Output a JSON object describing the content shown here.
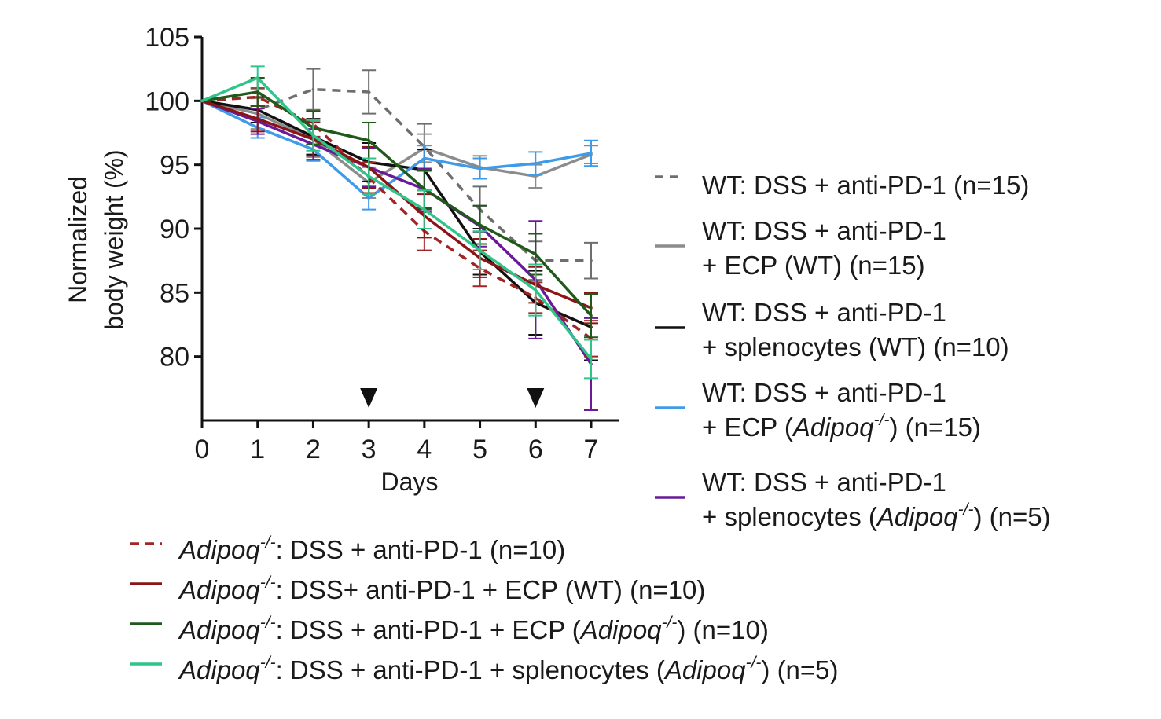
{
  "chart_data": {
    "type": "line",
    "xlabel": "Days",
    "ylabel": [
      "Normalized",
      "body weight (%)"
    ],
    "x": [
      0,
      1,
      2,
      3,
      4,
      5,
      6,
      7
    ],
    "xlim": [
      0,
      7
    ],
    "ylim": [
      75,
      105
    ],
    "yticks": [
      80,
      85,
      90,
      95,
      100,
      105
    ],
    "xticks": [
      0,
      1,
      2,
      3,
      4,
      5,
      6,
      7
    ],
    "grid": false,
    "markers": [
      {
        "x": 3,
        "shape": "triangle-down",
        "meaning": "treatment day"
      },
      {
        "x": 6,
        "shape": "triangle-down",
        "meaning": "treatment day"
      }
    ],
    "series": [
      {
        "name": "WT: DSS + anti-PD-1 (n=15)",
        "color": "#6e6e6e",
        "dash": true,
        "values": [
          100,
          99.3,
          100.9,
          100.7,
          96.4,
          91.5,
          87.5,
          87.5
        ],
        "errors": [
          0,
          1.0,
          1.6,
          1.7,
          1.8,
          1.8,
          1.5,
          1.4
        ]
      },
      {
        "name": "WT: DSS + anti-PD-1 + ECP (WT) (n=15)",
        "color": "#8c8c8c",
        "dash": false,
        "values": [
          100,
          99.0,
          97.0,
          93.6,
          96.3,
          94.8,
          94.1,
          95.8
        ],
        "errors": [
          0,
          1.2,
          1.4,
          1.2,
          1.1,
          0.9,
          0.9,
          0.7
        ]
      },
      {
        "name": "WT: DSS + anti-PD-1 + splenocytes (WT) (n=10)",
        "color": "#111111",
        "dash": false,
        "values": [
          100,
          99.3,
          97.2,
          95.2,
          94.6,
          88.2,
          84.2,
          82.3
        ],
        "errors": [
          0,
          1.0,
          1.4,
          1.5,
          1.6,
          1.8,
          2.5,
          2.6
        ]
      },
      {
        "name": "WT: DSS + anti-PD-1 + ECP (Adipoq-/-) (n=15)",
        "color": "#3f9ae8",
        "dash": false,
        "values": [
          100,
          97.9,
          96.2,
          92.4,
          95.5,
          94.7,
          95.1,
          95.9
        ],
        "errors": [
          0,
          0.8,
          0.9,
          0.9,
          1.0,
          0.8,
          0.9,
          1.0
        ]
      },
      {
        "name": "WT: DSS + anti-PD-1 + splenocytes (Adipoq-/-) (n=5)",
        "color": "#6a1a98",
        "dash": false,
        "values": [
          100,
          98.4,
          96.6,
          94.8,
          93.1,
          90.2,
          86.0,
          79.4
        ],
        "errors": [
          0,
          1.0,
          1.2,
          1.5,
          1.6,
          1.6,
          4.6,
          3.6
        ]
      },
      {
        "name": "Adipoq-/-: DSS + anti-PD-1 (n=10)",
        "color": "#a12525",
        "dash": true,
        "values": [
          100,
          100.3,
          98.2,
          94.0,
          89.8,
          86.9,
          84.6,
          81.4
        ],
        "errors": [
          0,
          0.7,
          1.0,
          1.2,
          1.5,
          1.4,
          1.2,
          1.4
        ]
      },
      {
        "name": "Adipoq-/-: DSS+ anti-PD-1 + ECP (WT) (n=10)",
        "color": "#8b1515",
        "dash": false,
        "values": [
          100,
          98.6,
          97.0,
          94.8,
          91.0,
          87.7,
          85.6,
          83.8
        ],
        "errors": [
          0,
          1.0,
          1.3,
          1.6,
          1.7,
          1.5,
          1.4,
          1.2
        ]
      },
      {
        "name": "Adipoq-/-: DSS + anti-PD-1 + ECP (Adipoq-/-) (n=10)",
        "color": "#1f5a1a",
        "dash": false,
        "values": [
          100,
          100.7,
          97.9,
          96.9,
          93.1,
          90.3,
          88.0,
          83.2
        ],
        "errors": [
          0,
          1.1,
          1.3,
          1.4,
          1.5,
          1.5,
          1.6,
          1.7
        ]
      },
      {
        "name": "Adipoq-/-: DSS + anti-PD-1 + splenocytes (Adipoq-/-) (n=5)",
        "color": "#2fc48a",
        "dash": false,
        "values": [
          100,
          101.8,
          97.3,
          94.1,
          91.5,
          88.3,
          85.2,
          79.8
        ],
        "errors": [
          0,
          0.9,
          1.2,
          1.4,
          1.5,
          1.5,
          2.0,
          1.5
        ]
      }
    ],
    "legend_right": [
      {
        "series": 0,
        "lines": [
          [
            {
              "t": "WT: DSS + anti-PD-1 (n=15)"
            }
          ]
        ]
      },
      {
        "series": 1,
        "lines": [
          [
            {
              "t": "WT: DSS + anti-PD-1"
            }
          ],
          [
            {
              "t": "+ ECP (WT) (n=15)"
            }
          ]
        ]
      },
      {
        "series": 2,
        "lines": [
          [
            {
              "t": "WT: DSS + anti-PD-1"
            }
          ],
          [
            {
              "t": "+ splenocytes (WT) (n=10)"
            }
          ]
        ]
      },
      {
        "series": 3,
        "lines": [
          [
            {
              "t": "WT: DSS + anti-PD-1"
            }
          ],
          [
            {
              "t": "+ ECP ("
            },
            {
              "t": "Adipoq",
              "i": true
            },
            {
              "t": "-/-",
              "sup": true,
              "i": true
            },
            {
              "t": ") (n=15)"
            }
          ]
        ]
      },
      {
        "series": 4,
        "lines": [
          [
            {
              "t": "WT: DSS + anti-PD-1"
            }
          ],
          [
            {
              "t": "+ splenocytes ("
            },
            {
              "t": "Adipoq",
              "i": true
            },
            {
              "t": "-/-",
              "sup": true,
              "i": true
            },
            {
              "t": ") (n=5)"
            }
          ]
        ]
      }
    ],
    "legend_bottom": [
      {
        "series": 5,
        "lines": [
          [
            {
              "t": "Adipoq",
              "i": true
            },
            {
              "t": "-/-",
              "sup": true,
              "i": true
            },
            {
              "t": ": DSS + anti-PD-1 (n=10)"
            }
          ]
        ]
      },
      {
        "series": 6,
        "lines": [
          [
            {
              "t": "Adipoq",
              "i": true
            },
            {
              "t": "-/-",
              "sup": true,
              "i": true
            },
            {
              "t": ": DSS+ anti-PD-1 + ECP (WT) (n=10)"
            }
          ]
        ]
      },
      {
        "series": 7,
        "lines": [
          [
            {
              "t": "Adipoq",
              "i": true
            },
            {
              "t": "-/-",
              "sup": true,
              "i": true
            },
            {
              "t": ": DSS + anti-PD-1 + ECP ("
            },
            {
              "t": "Adipoq",
              "i": true
            },
            {
              "t": "-/-",
              "sup": true,
              "i": true
            },
            {
              "t": ") (n=10)"
            }
          ]
        ]
      },
      {
        "series": 8,
        "lines": [
          [
            {
              "t": "Adipoq",
              "i": true
            },
            {
              "t": "-/-",
              "sup": true,
              "i": true
            },
            {
              "t": ": DSS + anti-PD-1 + splenocytes ("
            },
            {
              "t": "Adipoq",
              "i": true
            },
            {
              "t": "-/-",
              "sup": true,
              "i": true
            },
            {
              "t": ") (n=5)"
            }
          ]
        ]
      }
    ]
  }
}
